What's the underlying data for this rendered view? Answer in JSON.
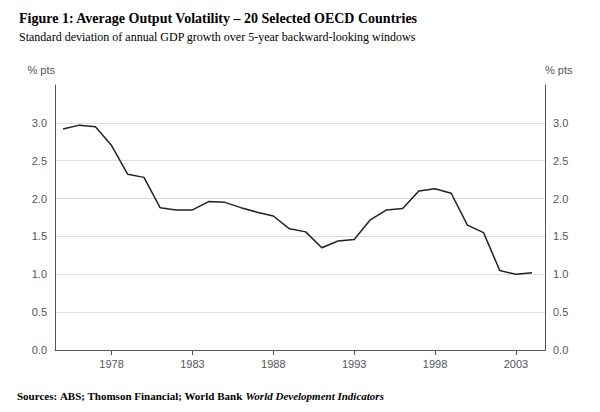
{
  "chart_data": {
    "type": "line",
    "title": "Figure 1: Average Output Volatility – 20 Selected OECD Countries",
    "subtitle": "Standard deviation of annual GDP growth over 5-year backward-looking windows",
    "annotations": [
      "Sources:",
      "ABS; Thomson Financial; World Bank",
      "World Development Indicators"
    ],
    "ylabel": "% pts",
    "y2label": "% pts",
    "x": [
      1975,
      1976,
      1977,
      1978,
      1979,
      1980,
      1981,
      1982,
      1983,
      1984,
      1985,
      1986,
      1987,
      1988,
      1989,
      1990,
      1991,
      1992,
      1993,
      1994,
      1995,
      1996,
      1997,
      1998,
      1999,
      2000,
      2001,
      2002,
      2003,
      2004
    ],
    "values": [
      2.92,
      2.97,
      2.95,
      2.7,
      2.32,
      2.28,
      1.88,
      1.85,
      1.85,
      1.96,
      1.95,
      1.88,
      1.82,
      1.77,
      1.6,
      1.56,
      1.35,
      1.44,
      1.46,
      1.72,
      1.85,
      1.87,
      2.1,
      2.13,
      2.07,
      1.65,
      1.55,
      1.05,
      1.0,
      1.02
    ],
    "color": "#222222",
    "xlim": [
      1974.5,
      2004.8
    ],
    "xticks": [
      1978,
      1983,
      1988,
      1993,
      1998,
      2003
    ],
    "ylim": [
      0.0,
      3.5
    ],
    "yticks": [
      {
        "value": 0,
        "label": "0.0"
      },
      0.5,
      {
        "value": 1,
        "label": "1.0"
      },
      1.5,
      {
        "value": 2,
        "label": "2.0"
      },
      2.5,
      {
        "value": 3,
        "label": "3.0"
      }
    ],
    "y2lim": [
      0.0,
      3.5
    ],
    "y2ticks": [
      {
        "value": 0,
        "label": "0.0"
      },
      0.5,
      {
        "value": 1,
        "label": "1.0"
      },
      1.5,
      {
        "value": 2,
        "label": "2.0"
      },
      2.5,
      {
        "value": 3,
        "label": "3.0"
      }
    ],
    "grid": true
  }
}
